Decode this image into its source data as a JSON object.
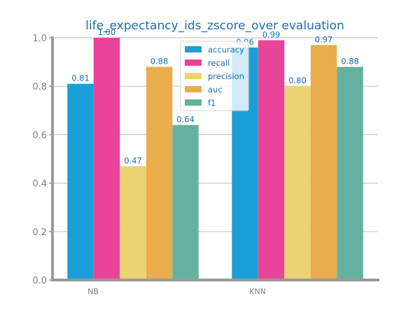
{
  "chart_data": {
    "type": "bar",
    "title": "life_expectancy_ids_zscore_over evaluation",
    "xlabel": "",
    "ylabel": "",
    "categories": [
      "NB",
      "KNN"
    ],
    "series": [
      {
        "name": "accuracy",
        "color": "#1a9fd9",
        "values": [
          0.81,
          0.96
        ],
        "labels": [
          "0.81",
          "0.96"
        ]
      },
      {
        "name": "recall",
        "color": "#e8449a",
        "values": [
          1.0,
          0.99
        ],
        "labels": [
          "1.00",
          "0.99"
        ]
      },
      {
        "name": "precision",
        "color": "#ebd374",
        "values": [
          0.47,
          0.8
        ],
        "labels": [
          "0.47",
          "0.80"
        ]
      },
      {
        "name": "auc",
        "color": "#e9ad4c",
        "values": [
          0.88,
          0.97
        ],
        "labels": [
          "0.88",
          "0.97"
        ]
      },
      {
        "name": "f1",
        "color": "#64b29e",
        "values": [
          0.64,
          0.88
        ],
        "labels": [
          "0.64",
          "0.88"
        ]
      }
    ],
    "ylim": [
      0,
      1.0
    ],
    "yticks": [
      "0.0",
      "0.2",
      "0.4",
      "0.6",
      "0.8",
      "1.0"
    ],
    "grid": "horizontal",
    "legend_position": "top-center",
    "colors": {
      "title": "#1a6fb0",
      "data_label": "#1a6fb0",
      "axis": "#9a9a9a",
      "grid": "#c8c8c8",
      "tick": "#808080"
    }
  }
}
